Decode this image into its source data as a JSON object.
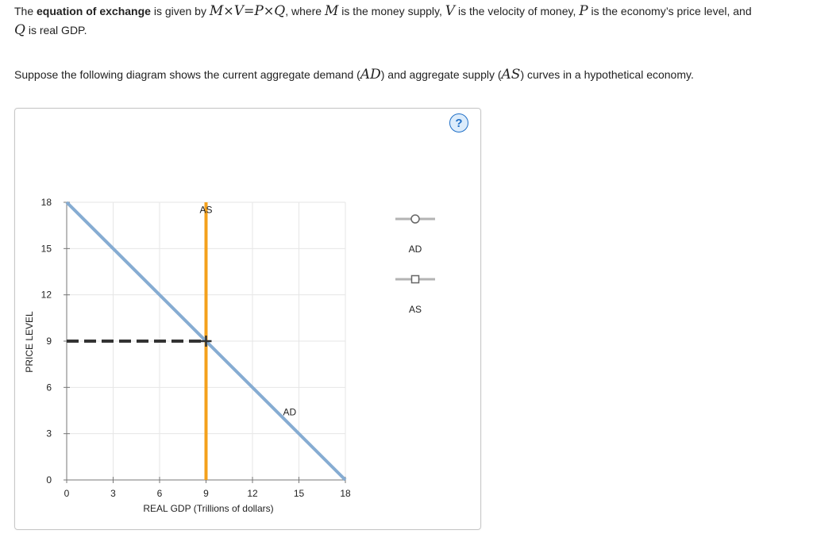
{
  "intro": {
    "t1": "The ",
    "bold": "equation of exchange",
    "t2": " is given by ",
    "eq_M": "M",
    "eq_x1": "×",
    "eq_V": "V",
    "eq_eq": "=",
    "eq_P": "P",
    "eq_x2": "×",
    "eq_Q": "Q",
    "t3": ", where ",
    "M": "M",
    "t4": " is the money supply, ",
    "V": "V",
    "t5": " is the velocity of money, ",
    "P": "P",
    "t6": " is the economy’s price level, and",
    "Q": "Q",
    "t7": " is real GDP."
  },
  "prompt": {
    "t1": "Suppose the following diagram shows the current aggregate demand (",
    "AD": "AD",
    "t2": ") and aggregate supply (",
    "AS": "AS",
    "t3": ") curves in a hypothetical economy."
  },
  "help": {
    "label": "?"
  },
  "chart_data": {
    "type": "line",
    "xlabel": "REAL GDP (Trillions of dollars)",
    "ylabel": "PRICE LEVEL",
    "xlim": [
      0,
      18
    ],
    "ylim": [
      0,
      18
    ],
    "xticks": [
      0,
      3,
      6,
      9,
      12,
      15,
      18
    ],
    "yticks": [
      0,
      3,
      6,
      9,
      12,
      15,
      18
    ],
    "grid": true,
    "series": [
      {
        "name": "AD",
        "color": "#86acd2",
        "points": [
          [
            0,
            18
          ],
          [
            18,
            0
          ]
        ]
      },
      {
        "name": "AS",
        "color": "#f4a11c",
        "points": [
          [
            9,
            0
          ],
          [
            9,
            18
          ]
        ]
      }
    ],
    "reference_line": {
      "from": [
        0,
        9
      ],
      "to": [
        9,
        9
      ],
      "color": "#333333",
      "style": "dashed"
    },
    "equilibrium": {
      "x": 9,
      "y": 9
    },
    "annotations": [
      {
        "text": "AS",
        "x": 9,
        "y": 17.5
      },
      {
        "text": "AD",
        "x": 14.4,
        "y": 4.4
      }
    ],
    "legend": {
      "placement": "right",
      "items": [
        {
          "label": "AD",
          "marker": "circle",
          "color": "#a9a9a9"
        },
        {
          "label": "AS",
          "marker": "square",
          "color": "#a9a9a9"
        }
      ]
    }
  }
}
